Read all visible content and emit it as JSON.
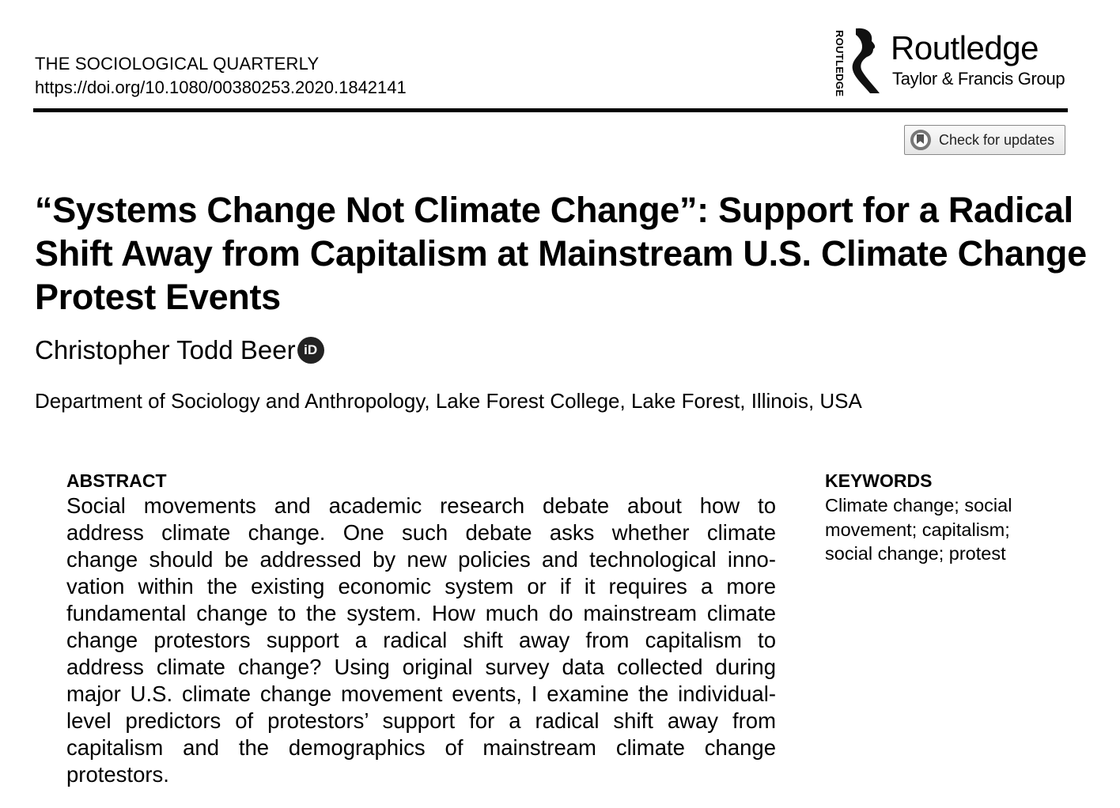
{
  "header": {
    "journal": "THE SOCIOLOGICAL QUARTERLY",
    "doi": "https://doi.org/10.1080/00380253.2020.1842141",
    "publisher_logo": {
      "vertical": "ROUTLEDGE",
      "name": "Routledge",
      "group": "Taylor & Francis Group"
    },
    "check_updates_label": "Check for updates"
  },
  "article": {
    "title_lines": [
      "“Systems Change Not Climate Change”: Support for a Radical",
      "Shift Away from Capitalism at Mainstream U.S. Climate Change",
      "Protest Events"
    ],
    "author": "Christopher Todd Beer",
    "orcid_label": "iD",
    "affiliation": "Department of Sociology and Anthropology, Lake Forest College, Lake Forest, Illinois, USA"
  },
  "abstract": {
    "heading": "ABSTRACT",
    "lines": [
      "Social movements and academic research debate about how to",
      "address climate change. One such debate asks whether climate",
      "change should be addressed by new policies and technological inno-",
      "vation within the existing economic system or if it requires a more",
      "fundamental change to the system. How much do mainstream climate",
      "change protestors support a radical shift away from capitalism to",
      "address climate change? Using original survey data collected during",
      "major U.S. climate change movement events, I examine the individual-",
      "level predictors of protestors’ support for a radical shift away from",
      "capitalism and the demographics of mainstream climate change",
      "protestors."
    ]
  },
  "keywords": {
    "heading": "KEYWORDS",
    "lines": [
      "Climate change; social",
      "movement; capitalism;",
      "social change; protest"
    ]
  }
}
